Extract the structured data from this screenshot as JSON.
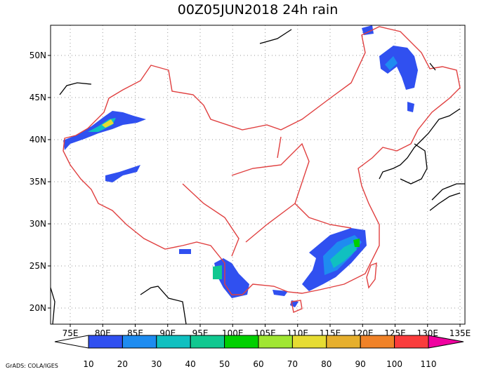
{
  "title": "00Z05JUN2018 24h rain",
  "lon_ticks": [
    {
      "value": 75,
      "label": "75E"
    },
    {
      "value": 80,
      "label": "80E"
    },
    {
      "value": 85,
      "label": "85E"
    },
    {
      "value": 90,
      "label": "90E"
    },
    {
      "value": 95,
      "label": "95E"
    },
    {
      "value": 100,
      "label": "100E"
    },
    {
      "value": 105,
      "label": "105E"
    },
    {
      "value": 110,
      "label": "110E"
    },
    {
      "value": 115,
      "label": "115E"
    },
    {
      "value": 120,
      "label": "120E"
    },
    {
      "value": 125,
      "label": "125E"
    },
    {
      "value": 130,
      "label": "130E"
    },
    {
      "value": 135,
      "label": "135E"
    }
  ],
  "lat_ticks": [
    {
      "value": 20,
      "label": "20N"
    },
    {
      "value": 25,
      "label": "25N"
    },
    {
      "value": 30,
      "label": "30N"
    },
    {
      "value": 35,
      "label": "35N"
    },
    {
      "value": 40,
      "label": "40N"
    },
    {
      "value": 45,
      "label": "45N"
    },
    {
      "value": 50,
      "label": "50N"
    }
  ],
  "colorbar": {
    "levels": [
      10,
      20,
      30,
      40,
      50,
      60,
      70,
      80,
      90,
      100,
      110
    ],
    "colors": [
      "#ffffff",
      "#3050f0",
      "#1e8cf0",
      "#10c0c0",
      "#10c890",
      "#00d000",
      "#a0e632",
      "#e6dc32",
      "#e6af2d",
      "#f08228",
      "#fa3c3c",
      "#f000a0"
    ]
  },
  "credit": "GrADS: COLA/IGES"
}
